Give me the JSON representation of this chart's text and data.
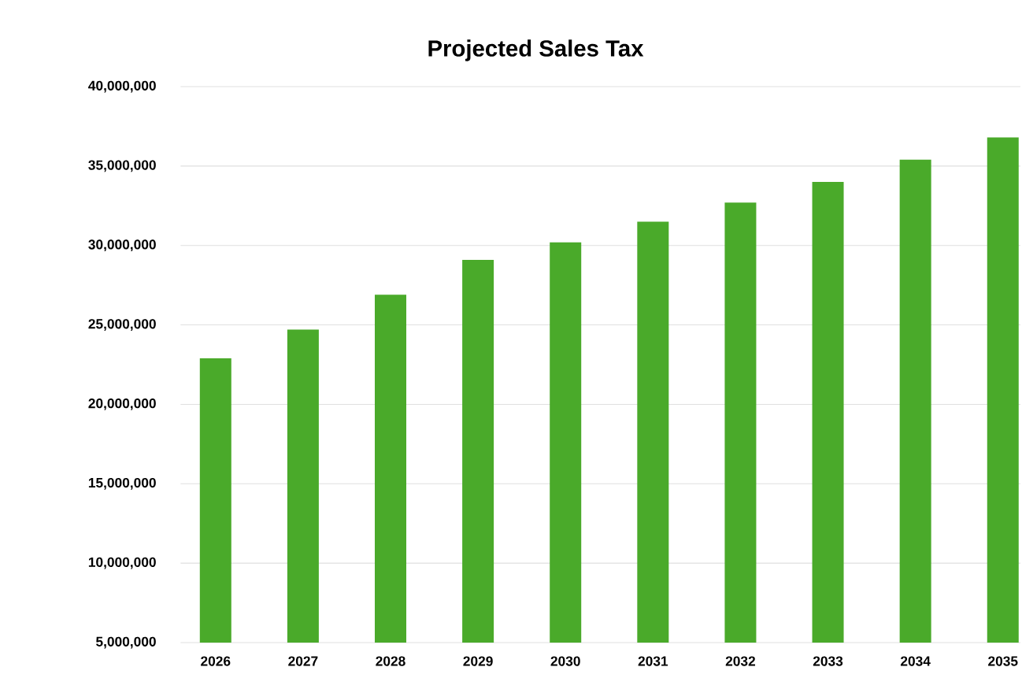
{
  "chart_data": {
    "type": "bar",
    "title": "Projected Sales Tax",
    "categories": [
      "2026",
      "2027",
      "2028",
      "2029",
      "2030",
      "2031",
      "2032",
      "2033",
      "2034",
      "2035"
    ],
    "values": [
      22900000,
      24700000,
      26900000,
      29100000,
      30200000,
      31500000,
      32700000,
      34000000,
      35400000,
      36800000
    ],
    "color": "#4aaa2a",
    "ylim": [
      5000000,
      40000000
    ],
    "yticks": [
      {
        "value": 5000000,
        "label": "5,000,000"
      },
      {
        "value": 10000000,
        "label": "10,000,000"
      },
      {
        "value": 15000000,
        "label": "15,000,000"
      },
      {
        "value": 20000000,
        "label": "20,000,000"
      },
      {
        "value": 25000000,
        "label": "25,000,000"
      },
      {
        "value": 30000000,
        "label": "30,000,000"
      },
      {
        "value": 35000000,
        "label": "35,000,000"
      },
      {
        "value": 40000000,
        "label": "40,000,000"
      }
    ],
    "grid": "y"
  }
}
